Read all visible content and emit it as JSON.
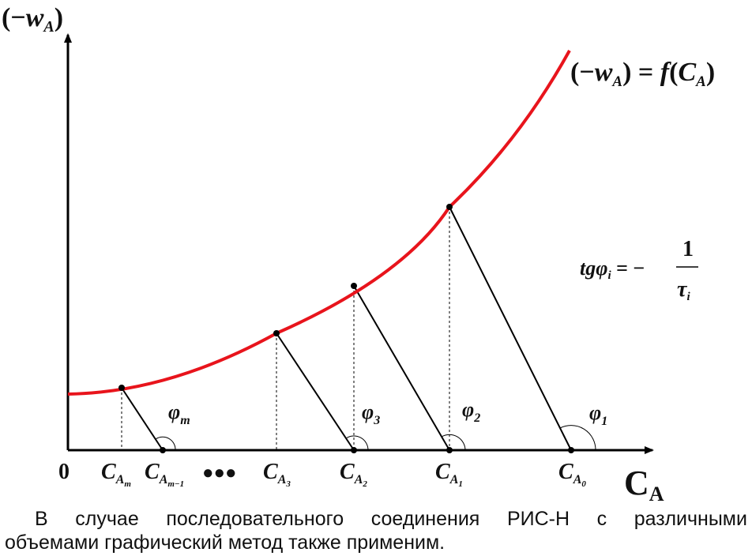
{
  "axis": {
    "y_label": {
      "open": "(−",
      "var": "w",
      "sub": "A",
      "close": ")"
    },
    "x_label": {
      "main": "C",
      "sub": "A"
    },
    "origin": "0"
  },
  "curve_label": {
    "lhs_open": "(−",
    "lhs_var": "w",
    "lhs_sub": "A",
    "lhs_close": ")",
    "eq": " = ",
    "func": "f",
    "arg_open": "(",
    "arg_var": "C",
    "arg_sub": "A",
    "arg_close": ")"
  },
  "formula": {
    "lhs": "tgφ",
    "lhs_sub": "i",
    "eq": " = −",
    "numerator": "1",
    "denominator": "τ",
    "den_sub": "i"
  },
  "angles": [
    {
      "base": "φ",
      "sub": "m"
    },
    {
      "base": "φ",
      "sub": "3"
    },
    {
      "base": "φ",
      "sub": "2"
    },
    {
      "base": "φ",
      "sub": "1"
    }
  ],
  "ticks": [
    {
      "base": "C",
      "sub": "A",
      "subsub": "m"
    },
    {
      "base": "C",
      "sub": "A",
      "subsub": "m−1"
    },
    {
      "base": "C",
      "sub": "A",
      "subsub": "3"
    },
    {
      "base": "C",
      "sub": "A",
      "subsub": "2"
    },
    {
      "base": "C",
      "sub": "A",
      "subsub": "1"
    },
    {
      "base": "C",
      "sub": "A",
      "subsub": "0"
    }
  ],
  "ellipsis": "●●●",
  "colors": {
    "curve": "#e8141c",
    "axis": "#000000",
    "line": "#000000"
  },
  "caption": {
    "line1_words": [
      "В",
      "случае",
      "последовательного",
      "соединения",
      "РИС-Н",
      "с",
      "различными"
    ],
    "line2": "объемами графический метод также применим."
  }
}
